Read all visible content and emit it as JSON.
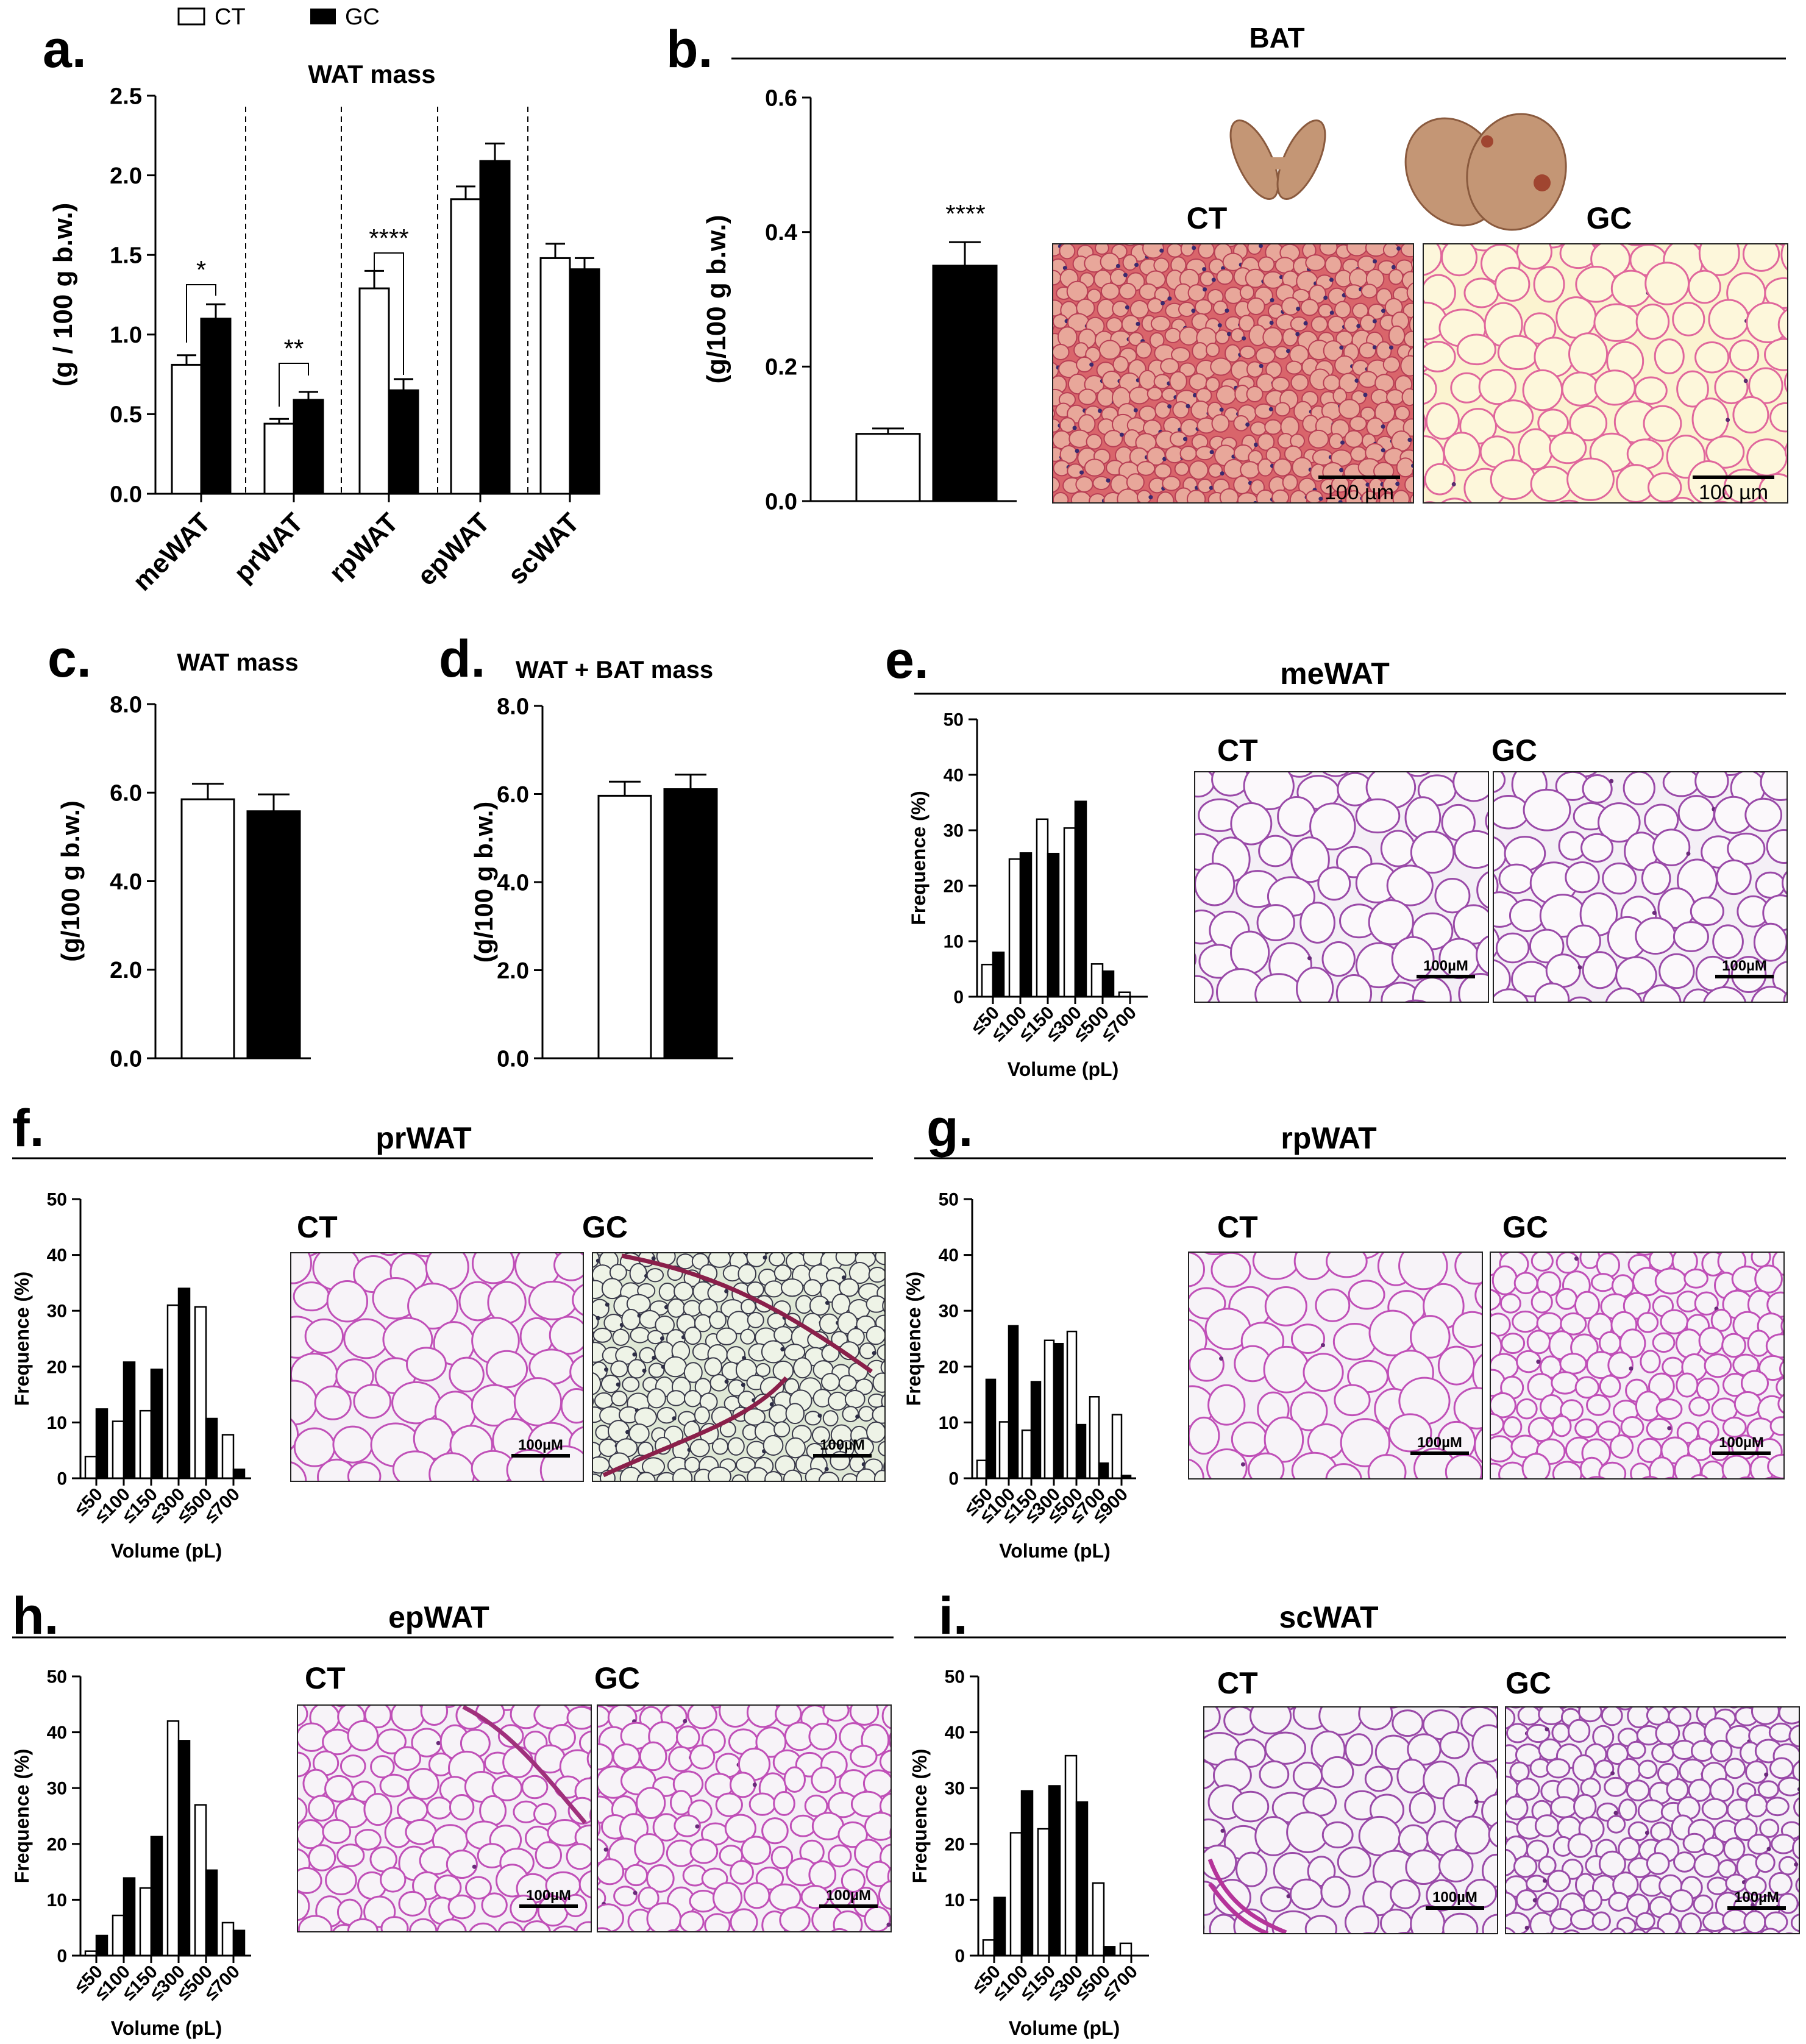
{
  "legend": {
    "ct": "CT",
    "gc": "GC"
  },
  "colors": {
    "ct_fill": "#ffffff",
    "gc_fill": "#000000",
    "axis": "#000000",
    "wat_cell_bg": "#f3eef5",
    "wat_membrane": "#c050b8",
    "bat_bg": "#d9656b",
    "gc_bat_bg": "#fbf3d0"
  },
  "histo_common": {
    "scale_um": "100 µm",
    "scale_uM": "100µM",
    "ct_label": "CT",
    "gc_label": "GC"
  },
  "panels": {
    "a": {
      "letter": "a."
    },
    "b": {
      "letter": "b."
    },
    "c": {
      "letter": "c."
    },
    "d": {
      "letter": "d."
    },
    "e": {
      "letter": "e."
    },
    "f": {
      "letter": "f."
    },
    "g": {
      "letter": "g."
    },
    "h": {
      "letter": "h."
    },
    "i": {
      "letter": "i."
    }
  },
  "chart_data": [
    {
      "id": "a",
      "type": "bar",
      "title": "WAT mass",
      "ylabel": "(g / 100 g b.w.)",
      "xlabel": "",
      "categories": [
        "meWAT",
        "prWAT",
        "rpWAT",
        "epWAT",
        "scWAT"
      ],
      "yticks": [
        "0.0",
        "0.5",
        "1.0",
        "1.5",
        "2.0",
        "2.5"
      ],
      "ylim": [
        0,
        2.5
      ],
      "series": [
        {
          "name": "CT",
          "values": [
            0.81,
            0.44,
            1.29,
            1.85,
            1.48
          ],
          "errors": [
            0.06,
            0.03,
            0.11,
            0.08,
            0.09
          ]
        },
        {
          "name": "GC",
          "values": [
            1.1,
            0.59,
            0.65,
            2.09,
            1.41
          ],
          "errors": [
            0.09,
            0.05,
            0.07,
            0.11,
            0.07
          ]
        }
      ],
      "significance": [
        "*",
        "**",
        "****",
        "",
        ""
      ]
    },
    {
      "id": "b",
      "type": "bar",
      "title": "BAT",
      "ylabel": "(g/100 g b.w.)",
      "yticks": [
        "0.0",
        "0.2",
        "0.4",
        "0.6"
      ],
      "ylim": [
        0,
        0.6
      ],
      "series": [
        {
          "name": "CT",
          "values": [
            0.1
          ],
          "errors": [
            0.008
          ]
        },
        {
          "name": "GC",
          "values": [
            0.35
          ],
          "errors": [
            0.035
          ]
        }
      ],
      "significance": [
        "****"
      ]
    },
    {
      "id": "c",
      "type": "bar",
      "title": "WAT mass",
      "ylabel": "(g/100 g b.w.)",
      "yticks": [
        "0.0",
        "2.0",
        "4.0",
        "6.0",
        "8.0"
      ],
      "ylim": [
        0,
        8
      ],
      "series": [
        {
          "name": "CT",
          "values": [
            5.85
          ],
          "errors": [
            0.35
          ]
        },
        {
          "name": "GC",
          "values": [
            5.58
          ],
          "errors": [
            0.38
          ]
        }
      ]
    },
    {
      "id": "d",
      "type": "bar",
      "title": "WAT + BAT mass",
      "ylabel": "(g/100 g b.w.)",
      "yticks": [
        "0.0",
        "2.0",
        "4.0",
        "6.0",
        "8.0"
      ],
      "ylim": [
        0,
        8
      ],
      "series": [
        {
          "name": "CT",
          "values": [
            5.96
          ],
          "errors": [
            0.32
          ]
        },
        {
          "name": "GC",
          "values": [
            6.11
          ],
          "errors": [
            0.33
          ]
        }
      ]
    },
    {
      "id": "e",
      "type": "bar",
      "title": "meWAT",
      "ylabel": "Frequence (%)",
      "xlabel": "Volume (pL)",
      "categories": [
        "≤50",
        "≤100",
        "≤150",
        "≤300",
        "≤500",
        "≤700"
      ],
      "yticks": [
        "0",
        "10",
        "20",
        "30",
        "40",
        "50"
      ],
      "ylim": [
        0,
        50
      ],
      "series": [
        {
          "name": "CT",
          "values": [
            5.8,
            24.8,
            32.0,
            30.4,
            5.9,
            0.8
          ]
        },
        {
          "name": "GC",
          "values": [
            8.0,
            25.9,
            25.8,
            35.2,
            4.6,
            0
          ]
        }
      ]
    },
    {
      "id": "f",
      "type": "bar",
      "title": "prWAT",
      "ylabel": "Frequence (%)",
      "xlabel": "Volume (pL)",
      "categories": [
        "≤50",
        "≤100",
        "≤150",
        "≤300",
        "≤500",
        "≤700"
      ],
      "yticks": [
        "0",
        "10",
        "20",
        "30",
        "40",
        "50"
      ],
      "ylim": [
        0,
        50
      ],
      "series": [
        {
          "name": "CT",
          "values": [
            3.9,
            10.2,
            12.1,
            31.0,
            30.7,
            7.8
          ]
        },
        {
          "name": "GC",
          "values": [
            12.4,
            20.8,
            19.5,
            34.0,
            10.7,
            1.6
          ]
        }
      ]
    },
    {
      "id": "g",
      "type": "bar",
      "title": "rpWAT",
      "ylabel": "Frequence (%)",
      "xlabel": "Volume (pL)",
      "categories": [
        "≤50",
        "≤100",
        "≤150",
        "≤300",
        "≤500",
        "≤700",
        "≤900"
      ],
      "yticks": [
        "0",
        "10",
        "20",
        "30",
        "40",
        "50"
      ],
      "ylim": [
        0,
        50
      ],
      "series": [
        {
          "name": "CT",
          "values": [
            3.2,
            10.1,
            8.6,
            24.7,
            26.3,
            14.6,
            11.4
          ]
        },
        {
          "name": "GC",
          "values": [
            17.7,
            27.3,
            17.3,
            24.1,
            9.6,
            2.7,
            0.5
          ]
        }
      ]
    },
    {
      "id": "h",
      "type": "bar",
      "title": "epWAT",
      "ylabel": "Frequence (%)",
      "xlabel": "Volume (pL)",
      "categories": [
        "≤50",
        "≤100",
        "≤150",
        "≤300",
        "≤500",
        "≤700"
      ],
      "yticks": [
        "0",
        "10",
        "20",
        "30",
        "40",
        "50"
      ],
      "ylim": [
        0,
        50
      ],
      "series": [
        {
          "name": "CT",
          "values": [
            0.8,
            7.2,
            12.1,
            42.0,
            27.0,
            5.9
          ]
        },
        {
          "name": "GC",
          "values": [
            3.6,
            13.9,
            21.3,
            38.5,
            15.3,
            4.5
          ]
        }
      ]
    },
    {
      "id": "i",
      "type": "bar",
      "title": "scWAT",
      "ylabel": "Frequence (%)",
      "xlabel": "Volume (pL)",
      "categories": [
        "≤50",
        "≤100",
        "≤150",
        "≤300",
        "≤500",
        "≤700"
      ],
      "yticks": [
        "0",
        "10",
        "20",
        "30",
        "40",
        "50"
      ],
      "ylim": [
        0,
        50
      ],
      "series": [
        {
          "name": "CT",
          "values": [
            2.8,
            22.0,
            22.7,
            35.8,
            13.0,
            2.2
          ]
        },
        {
          "name": "GC",
          "values": [
            10.4,
            29.5,
            30.4,
            27.5,
            1.6,
            0
          ]
        }
      ]
    }
  ]
}
